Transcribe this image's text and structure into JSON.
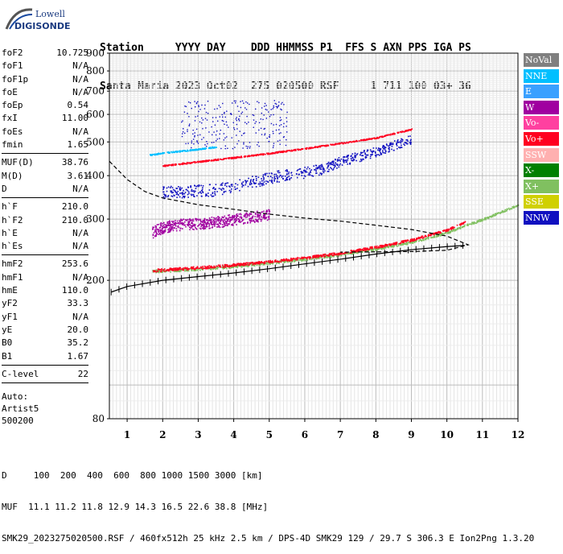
{
  "logo": {
    "line1": "Lowell",
    "line2": "DIGISONDE"
  },
  "header": {
    "labels": "Station     YYYY DAY    DDD HHMMSS P1  FFS S AXN PPS IGA PS",
    "values": "Santa Maria 2023 Oct02  275 020500 RSF     1 711 100 03+ 36"
  },
  "params": [
    {
      "k": "foF2",
      "v": "10.725"
    },
    {
      "k": "foF1",
      "v": "N/A"
    },
    {
      "k": "foF1p",
      "v": "N/A"
    },
    {
      "k": "foE",
      "v": "N/A"
    },
    {
      "k": "foEp",
      "v": "0.54"
    },
    {
      "k": "fxI",
      "v": "11.00"
    },
    {
      "k": "foEs",
      "v": "N/A"
    },
    {
      "k": "fmin",
      "v": "1.65"
    },
    {
      "sep": true
    },
    {
      "k": "MUF(D)",
      "v": "38.76"
    },
    {
      "k": "M(D)",
      "v": "3.61"
    },
    {
      "k": "D",
      "v": "N/A"
    },
    {
      "sep": true
    },
    {
      "k": "h`F",
      "v": "210.0"
    },
    {
      "k": "h`F2",
      "v": "210.0"
    },
    {
      "k": "h`E",
      "v": "N/A"
    },
    {
      "k": "h`Es",
      "v": "N/A"
    },
    {
      "sep": true
    },
    {
      "k": "hmF2",
      "v": "253.6"
    },
    {
      "k": "hmF1",
      "v": "N/A"
    },
    {
      "k": "hmE",
      "v": "110.0"
    },
    {
      "k": "yF2",
      "v": "33.3"
    },
    {
      "k": "yF1",
      "v": "N/A"
    },
    {
      "k": "yE",
      "v": "20.0"
    },
    {
      "k": "B0",
      "v": "35.2"
    },
    {
      "k": "B1",
      "v": "1.67"
    },
    {
      "sep": true
    },
    {
      "k": "C-level",
      "v": "22"
    },
    {
      "sep": true
    }
  ],
  "auto": [
    "Auto:",
    "Artist5",
    "500200"
  ],
  "bottom": {
    "line1": "D     100  200  400  600  800 1000 1500 3000 [km]",
    "line2": "MUF  11.1 11.2 11.8 12.9 14.3 16.5 22.6 38.8 [MHz]",
    "line3": "SMK29_2023275020500.RSF / 460fx512h 25 kHz 2.5 km / DPS-4D SMK29 129 / 29.7 S 306.3 E Ion2Png 1.3.20"
  },
  "legend": [
    {
      "label": "NoVal",
      "color": "#808080"
    },
    {
      "label": "NNE",
      "color": "#00bfff"
    },
    {
      "label": "E",
      "color": "#3aa0ff"
    },
    {
      "label": "W",
      "color": "#a000a0"
    },
    {
      "label": "Vo-",
      "color": "#ff40a0"
    },
    {
      "label": "Vo+",
      "color": "#ff0020"
    },
    {
      "label": "SSW",
      "color": "#ffb0b0"
    },
    {
      "label": "X-",
      "color": "#008000"
    },
    {
      "label": "X+",
      "color": "#80c060"
    },
    {
      "label": "SSE",
      "color": "#d0d000"
    },
    {
      "label": "NNW",
      "color": "#1010c0"
    }
  ],
  "chart_data": {
    "type": "scatter",
    "title": "",
    "xlabel": "",
    "ylabel": "",
    "xlim": [
      0.5,
      12
    ],
    "ylim": [
      80,
      900
    ],
    "y_scale": "log",
    "xticks": [
      1,
      2,
      3,
      4,
      5,
      6,
      7,
      8,
      9,
      10,
      11,
      12
    ],
    "yticks": [
      80,
      200,
      300,
      400,
      500,
      600,
      700,
      800,
      900
    ],
    "grid": true,
    "legend_position": "right",
    "traces": [
      {
        "name": "NNW",
        "color": "#1010c0",
        "x": [
          2.0,
          3.5,
          4.0,
          4.5,
          5.0,
          5.5,
          6.0,
          6.5,
          7.0,
          7.5,
          8.0,
          8.5,
          9.0
        ],
        "y": [
          360,
          365,
          375,
          385,
          395,
          405,
          410,
          420,
          440,
          455,
          470,
          490,
          510
        ],
        "marker": "dots"
      },
      {
        "name": "Vo+",
        "color": "#ff0020",
        "x": [
          2.0,
          3.0,
          4.0,
          5.0,
          6.0,
          7.0,
          8.0,
          9.0
        ],
        "y": [
          428,
          440,
          452,
          465,
          480,
          497,
          515,
          545
        ],
        "marker": "dots"
      },
      {
        "name": "NNE",
        "color": "#00bfff",
        "x": [
          1.6,
          2.0,
          2.5,
          3.0,
          3.5
        ],
        "y": [
          460,
          466,
          472,
          478,
          485
        ],
        "marker": "dots"
      },
      {
        "name": "X+",
        "color": "#80c060",
        "x": [
          1.7,
          3.0,
          4.0,
          5.0,
          6.0,
          7.0,
          8.0,
          9.0,
          10.0,
          10.5,
          11.0,
          11.5,
          12.0
        ],
        "y": [
          213,
          216,
          220,
          225,
          231,
          238,
          247,
          258,
          275,
          288,
          300,
          315,
          330
        ],
        "marker": "dots"
      },
      {
        "name": "Vo-",
        "color": "#ff0020",
        "x": [
          1.7,
          3.0,
          4.0,
          5.0,
          6.0,
          7.0,
          8.0,
          9.0,
          10.0,
          10.5
        ],
        "y": [
          214,
          218,
          222,
          227,
          233,
          240,
          250,
          262,
          280,
          295
        ],
        "marker": "dots"
      },
      {
        "name": "W",
        "color": "#a000a0",
        "x": [
          1.7,
          2.0,
          2.5,
          3.0,
          3.5,
          4.0,
          4.5,
          5.0
        ],
        "y": [
          275,
          285,
          290,
          292,
          295,
          300,
          305,
          310
        ],
        "marker": "dots"
      },
      {
        "name": "h`F trace",
        "color": "#000000",
        "x": [
          0.55,
          1.0,
          2.0,
          3.0,
          4.0,
          5.0,
          6.0,
          7.0,
          8.0,
          9.0,
          10.0,
          10.5
        ],
        "y": [
          185,
          192,
          200,
          205,
          210,
          216,
          223,
          230,
          238,
          245,
          250,
          252
        ],
        "marker": "ticks"
      },
      {
        "name": "profile",
        "color": "#000000",
        "x": [
          0.5,
          1.0,
          1.5,
          2.0,
          3.0,
          4.0,
          5.0,
          6.0,
          7.0,
          8.0,
          9.0,
          10.0,
          10.6,
          10.0,
          9.0,
          7.0
        ],
        "y": [
          440,
          390,
          360,
          345,
          330,
          320,
          310,
          302,
          296,
          288,
          280,
          268,
          253,
          244,
          242,
          241
        ],
        "marker": "dashed"
      }
    ]
  },
  "ticks_y": [
    "900",
    "800",
    "700",
    "600",
    "500",
    "400",
    "300",
    "200",
    "80"
  ],
  "ticks_x": [
    "1",
    "2",
    "3",
    "4",
    "5",
    "6",
    "7",
    "8",
    "9",
    "10",
    "11",
    "12"
  ]
}
